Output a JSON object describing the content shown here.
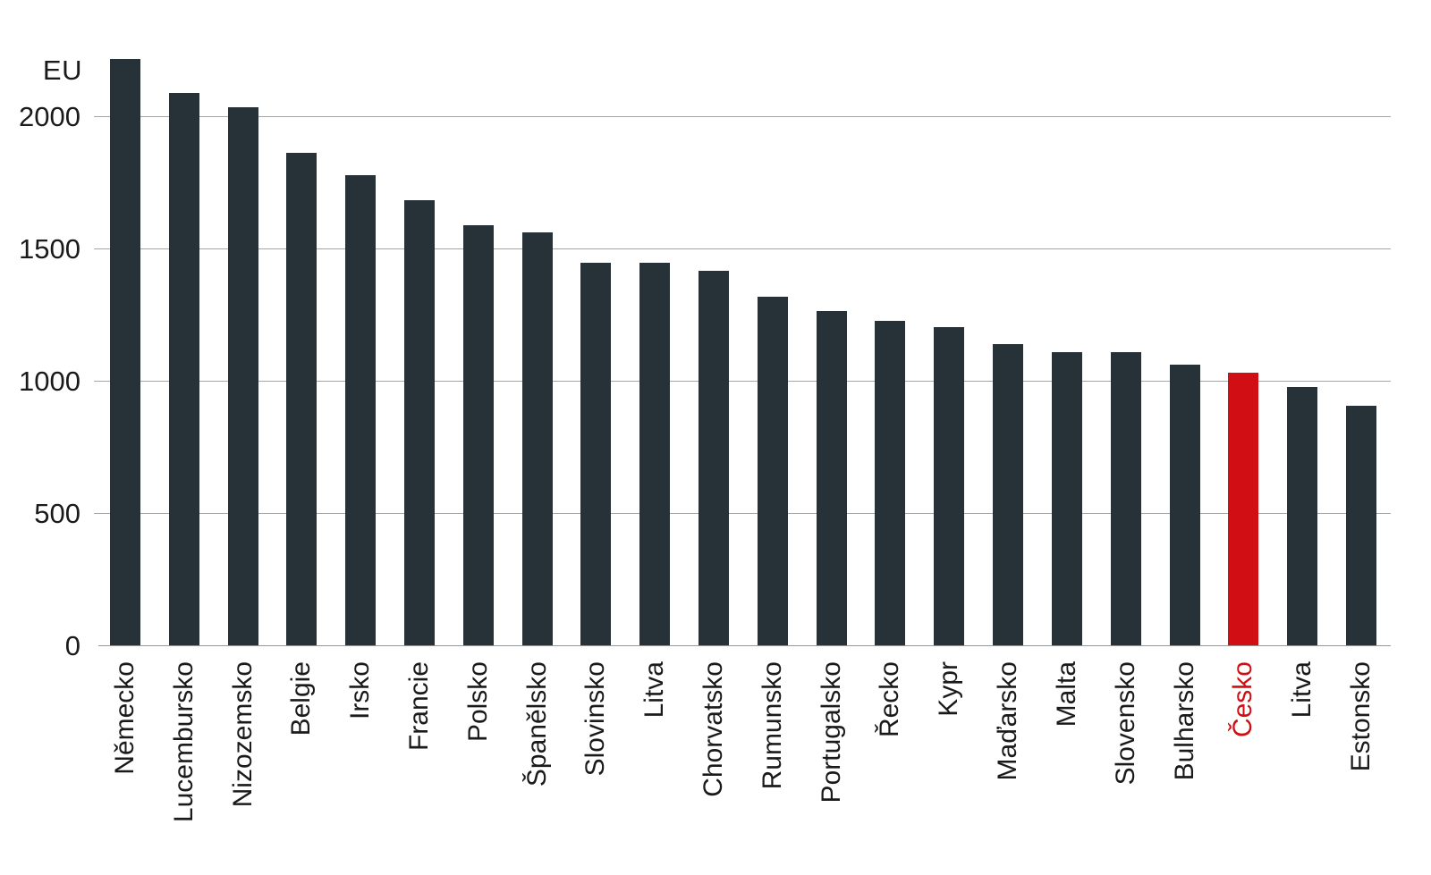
{
  "chart_data": {
    "type": "bar",
    "title": "",
    "unit_label": "EU",
    "xlabel": "",
    "ylabel": "EU",
    "categories": [
      "Německo",
      "Lucembursko",
      "Nizozemsko",
      "Belgie",
      "Irsko",
      "Francie",
      "Polsko",
      "Španělsko",
      "Slovinsko",
      "Litva",
      "Chorvatsko",
      "Rumunsko",
      "Portugalsko",
      "Řecko",
      "Kypr",
      "Maďarsko",
      "Malta",
      "Slovensko",
      "Bulharsko",
      "Česko",
      "Litva",
      "Estonsko"
    ],
    "values": [
      2220,
      2090,
      2035,
      1865,
      1780,
      1685,
      1590,
      1565,
      1450,
      1450,
      1420,
      1320,
      1265,
      1230,
      1205,
      1140,
      1110,
      1110,
      1065,
      1035,
      980,
      910
    ],
    "highlight_index": 19,
    "highlight_label": "Česko",
    "yticks": [
      0,
      500,
      1000,
      1500,
      2000
    ],
    "ytick_labels": [
      "0",
      "500",
      "1000",
      "1500",
      "2000"
    ],
    "ylim": [
      0,
      2440
    ],
    "grid": true,
    "legend": "none",
    "colors": {
      "bar_default": "#263238",
      "bar_highlight": "#d10e13",
      "label_default": "#1a1a1a",
      "label_highlight": "#d10e13",
      "gridline": "#a5a5a5",
      "baseline": "#989898",
      "background": "#ffffff"
    }
  }
}
